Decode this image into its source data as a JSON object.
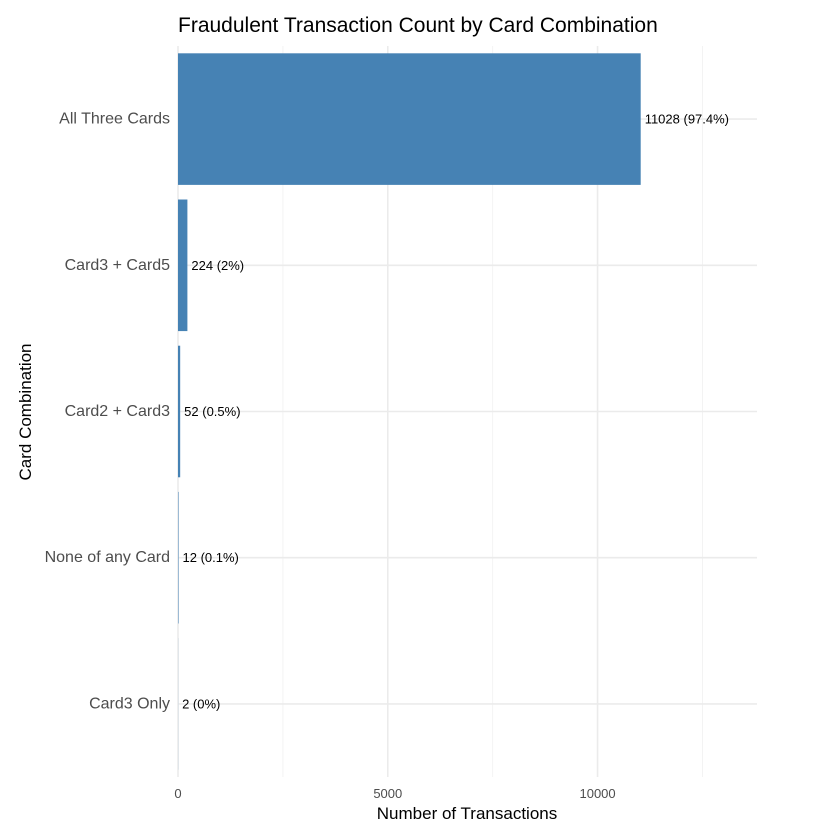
{
  "chart_data": {
    "type": "bar",
    "orientation": "horizontal",
    "title": "Fraudulent Transaction Count by Card Combination",
    "xlabel": "Number of Transactions",
    "ylabel": "Card Combination",
    "categories": [
      "All Three Cards",
      "Card3 + Card5",
      "Card2 + Card3",
      "None of any Card",
      "Card3 Only"
    ],
    "values": [
      11028,
      224,
      52,
      12,
      2
    ],
    "data_labels": [
      "11028 (97.4%)",
      "224 (2%)",
      "52 (0.5%)",
      "12 (0.1%)",
      "2 (0%)"
    ],
    "xlim": [
      0,
      13800
    ],
    "xticks": [
      0,
      5000,
      10000
    ],
    "xtick_labels": [
      "0",
      "5000",
      "10000"
    ],
    "minor_xticks": [
      2500,
      7500,
      12500
    ],
    "grid": true,
    "legend": "none",
    "bar_color": "#4682b4"
  }
}
